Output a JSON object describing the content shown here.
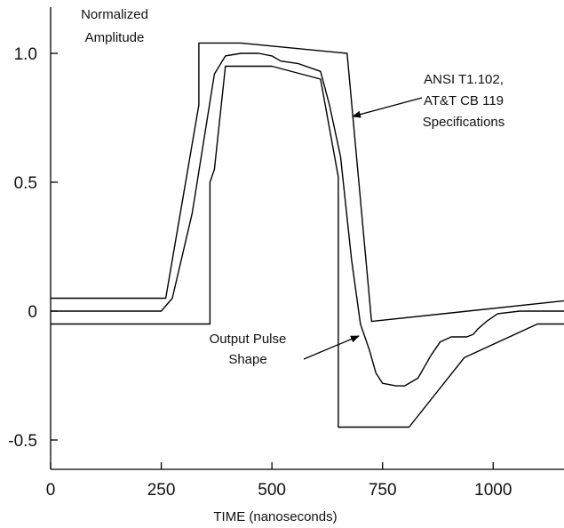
{
  "chart_data": {
    "type": "line",
    "ylabel_lines": [
      "Normalized",
      "Amplitude"
    ],
    "xlabel": "TIME (nanoseconds)",
    "xlim": [
      0,
      1160
    ],
    "ylim": [
      -0.6,
      1.15
    ],
    "x_ticks": [
      0,
      250,
      500,
      750,
      1000
    ],
    "x_tick_labels": [
      "0",
      "250",
      "500",
      "750",
      "1000"
    ],
    "y_ticks": [
      1.0,
      0.5,
      0,
      -0.5
    ],
    "y_tick_labels": [
      "1.0",
      "0.5",
      "0",
      "-0.5"
    ],
    "grid": false,
    "series": [
      {
        "x": [
          0,
          260,
          335,
          335,
          430,
          670,
          725,
          1160
        ],
        "y": [
          0.05,
          0.05,
          0.8,
          1.04,
          1.04,
          1.0,
          -0.04,
          0.04
        ]
      },
      {
        "x": [
          0,
          250,
          275,
          320,
          370,
          395,
          430,
          470,
          500,
          520,
          560,
          610,
          630,
          655,
          680,
          700,
          720,
          735,
          750,
          780,
          800,
          830,
          860,
          880,
          905,
          925,
          940,
          955,
          965,
          985,
          1010,
          1060,
          1160
        ],
        "y": [
          0.0,
          0.0,
          0.05,
          0.38,
          0.92,
          0.99,
          1.0,
          1.0,
          0.99,
          0.97,
          0.96,
          0.93,
          0.8,
          0.6,
          0.2,
          -0.05,
          -0.15,
          -0.24,
          -0.28,
          -0.29,
          -0.29,
          -0.26,
          -0.17,
          -0.12,
          -0.1,
          -0.1,
          -0.1,
          -0.09,
          -0.07,
          -0.04,
          -0.01,
          0.0,
          0.0
        ]
      },
      {
        "x": [
          0,
          360,
          360,
          370,
          395,
          500,
          610,
          650,
          650,
          810,
          935,
          1100,
          1160
        ],
        "y": [
          -0.05,
          -0.05,
          0.5,
          0.55,
          0.95,
          0.95,
          0.9,
          0.52,
          -0.45,
          -0.45,
          -0.18,
          -0.05,
          -0.05
        ]
      }
    ],
    "annotations": [
      {
        "lines": [
          "ANSI T1.102,",
          "AT&T CB 119",
          "Specifications"
        ]
      },
      {
        "lines": [
          "Output Pulse",
          "Shape"
        ]
      }
    ]
  }
}
